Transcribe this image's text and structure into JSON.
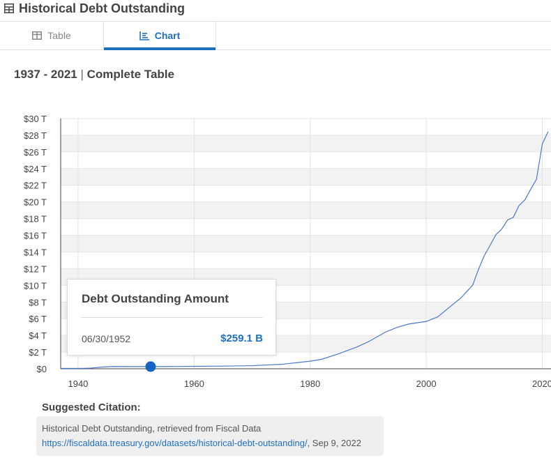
{
  "header": {
    "title": "Historical Debt Outstanding"
  },
  "tabs": [
    {
      "label": "Table",
      "active": false
    },
    {
      "label": "Chart",
      "active": true
    }
  ],
  "range": {
    "years": "1937 - 2021",
    "separator": "|",
    "label": "Complete Table"
  },
  "tooltip": {
    "title": "Debt Outstanding Amount",
    "date": "06/30/1952",
    "value": "$259.1 B",
    "point_year": 1952.5,
    "point_value": 0.2591
  },
  "citation": {
    "label": "Suggested Citation:",
    "text": "Historical Debt Outstanding, retrieved from Fiscal Data",
    "url": "https://fiscaldata.treasury.gov/datasets/historical-debt-outstanding/",
    "date_suffix": ", Sep 9, 2022"
  },
  "colors": {
    "accent": "#1f6fbf",
    "line": "#4a78c7",
    "point": "#1565c0"
  },
  "chart_data": {
    "type": "line",
    "title": "",
    "xlabel": "",
    "ylabel": "",
    "xlim": [
      1937,
      2021.5
    ],
    "ylim": [
      0,
      30
    ],
    "x_ticks": [
      1940,
      1960,
      1980,
      2000,
      2020
    ],
    "x_tick_labels": [
      "1940",
      "1960",
      "1980",
      "2000",
      "2020"
    ],
    "y_ticks": [
      0,
      2,
      4,
      6,
      8,
      10,
      12,
      14,
      16,
      18,
      20,
      22,
      24,
      26,
      28,
      30
    ],
    "y_tick_labels": [
      "$0",
      "$2 T",
      "$4 T",
      "$6 T",
      "$8 T",
      "$10 T",
      "$12 T",
      "$14 T",
      "$16 T",
      "$18 T",
      "$20 T",
      "$22 T",
      "$24 T",
      "$26 T",
      "$28 T",
      "$30 T"
    ],
    "grid": true,
    "units": "trillions of dollars",
    "series": [
      {
        "x": [
          1937,
          1940,
          1942,
          1944,
          1946,
          1950,
          1955,
          1960,
          1965,
          1970,
          1975,
          1980,
          1982,
          1985,
          1988,
          1990,
          1993,
          1995,
          1997,
          2000,
          2002,
          2004,
          2006,
          2008,
          2009,
          2010,
          2011,
          2012,
          2013,
          2014,
          2015,
          2016,
          2017,
          2018,
          2019,
          2020,
          2021
        ],
        "y": [
          0.04,
          0.04,
          0.07,
          0.2,
          0.27,
          0.26,
          0.27,
          0.29,
          0.32,
          0.37,
          0.53,
          0.91,
          1.14,
          1.82,
          2.6,
          3.23,
          4.41,
          4.97,
          5.37,
          5.67,
          6.23,
          7.38,
          8.51,
          10.02,
          11.91,
          13.56,
          14.79,
          16.07,
          16.74,
          17.82,
          18.15,
          19.57,
          20.24,
          21.52,
          22.72,
          26.95,
          28.43
        ]
      }
    ]
  }
}
